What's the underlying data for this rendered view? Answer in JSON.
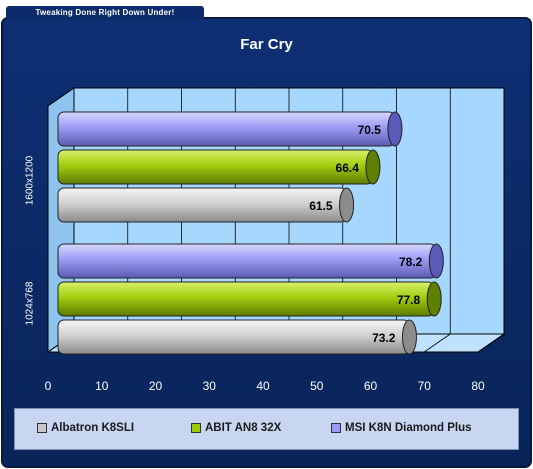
{
  "banner": {
    "text": "Tweaking Done Right Down Under!"
  },
  "chart_data": {
    "type": "bar",
    "orientation": "horizontal",
    "title": "Far Cry",
    "categories": [
      "1600x1200",
      "1024x768"
    ],
    "series": [
      {
        "name": "Albatron K8SLI",
        "color": "#c8c8c8",
        "values": [
          61.5,
          73.2
        ]
      },
      {
        "name": "ABIT AN8 32X",
        "color": "#99cc00",
        "values": [
          66.4,
          77.8
        ]
      },
      {
        "name": "MSI K8N Diamond Plus",
        "color": "#9999ff",
        "values": [
          70.5,
          78.2
        ]
      }
    ],
    "xlim": [
      0,
      80
    ],
    "xticks": [
      "0",
      "10",
      "20",
      "30",
      "40",
      "50",
      "60",
      "70",
      "80"
    ],
    "grid": true,
    "legend_position": "bottom"
  }
}
